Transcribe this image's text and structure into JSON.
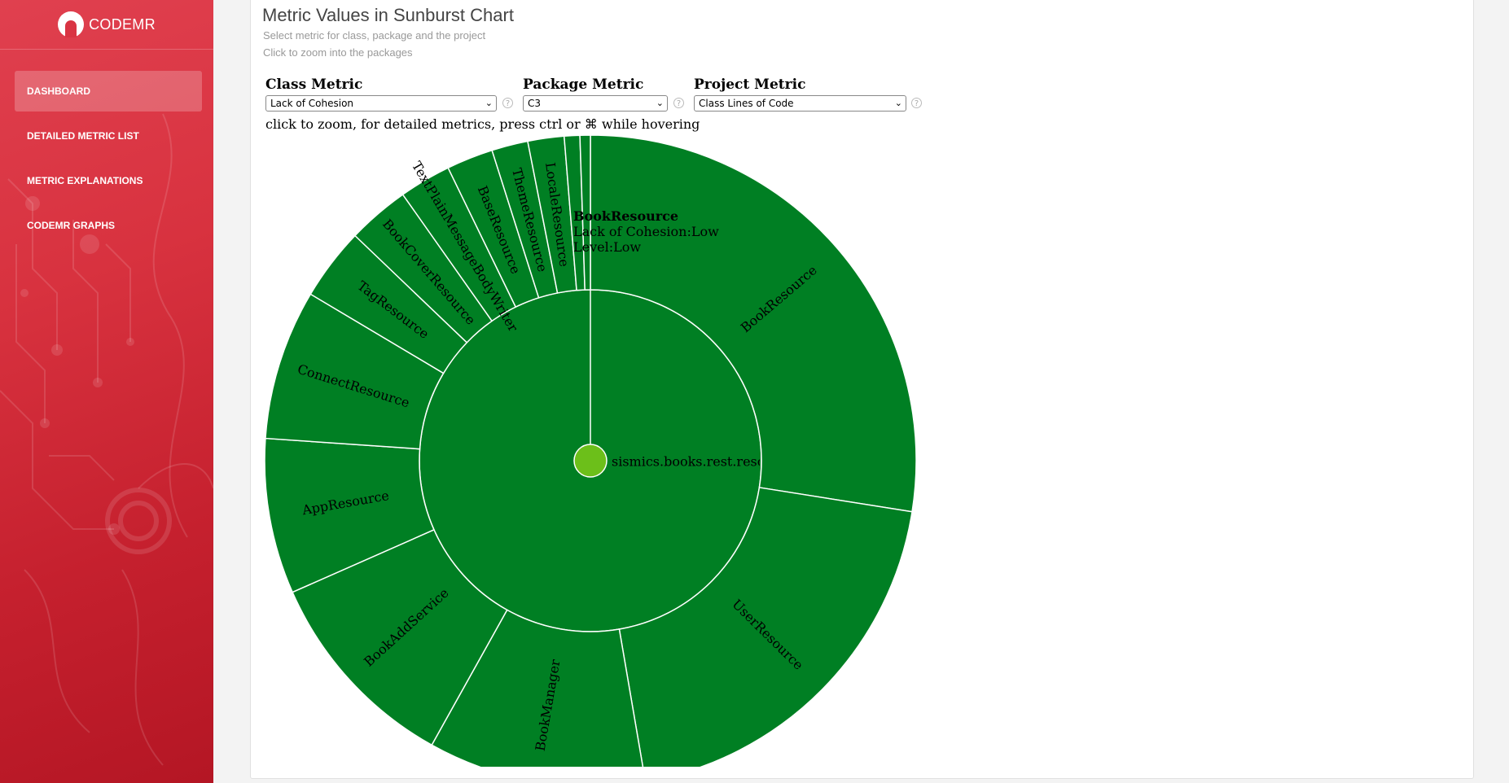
{
  "sidebar": {
    "brand": "CODEMR",
    "items": [
      {
        "label": "DASHBOARD",
        "active": true
      },
      {
        "label": "DETAILED METRIC LIST",
        "active": false
      },
      {
        "label": "METRIC EXPLANATIONS",
        "active": false
      },
      {
        "label": "CODEMR GRAPHS",
        "active": false
      }
    ]
  },
  "header": {
    "title": "Metric Values in Sunburst Chart",
    "subtitle_1": "Select metric for class, package and the project",
    "subtitle_2": "Click to zoom into the packages"
  },
  "selectors": {
    "class_metric": {
      "label": "Class Metric",
      "value": "Lack of Cohesion"
    },
    "package_metric": {
      "label": "Package Metric",
      "value": "C3"
    },
    "project_metric": {
      "label": "Project Metric",
      "value": "Class Lines of Code"
    },
    "help_glyph": "?"
  },
  "hint": "click to zoom, for detailed metrics, press ctrl or ⌘ while hovering",
  "tooltip": {
    "title": "BookResource",
    "line_1": "Lack of Cohesion:Low",
    "line_2": "Level:Low"
  },
  "colors": {
    "accent": "#d8323f",
    "segment": "#007f23",
    "center": "#6cbf1a"
  },
  "chart_data": {
    "type": "sunburst",
    "center_label": "sismics.books.rest.reso",
    "package": "sismics.books.rest.resource",
    "classes": [
      {
        "name": "BookResource",
        "value": 107
      },
      {
        "name": "UserResource",
        "value": 77
      },
      {
        "name": "BookManager",
        "value": 42
      },
      {
        "name": "BookAddService",
        "value": 40
      },
      {
        "name": "AppResource",
        "value": 30
      },
      {
        "name": "ConnectResource",
        "value": 29
      },
      {
        "name": "TagResource",
        "value": 14
      },
      {
        "name": "BookCoverResource",
        "value": 12
      },
      {
        "name": "TextPlainMessageBodyWriter",
        "value": 10
      },
      {
        "name": "BaseResource",
        "value": 9
      },
      {
        "name": "ThemeResource",
        "value": 7
      },
      {
        "name": "LocaleResource",
        "value": 7
      },
      {
        "name": "",
        "value": 3
      },
      {
        "name": "",
        "value": 2
      }
    ]
  }
}
